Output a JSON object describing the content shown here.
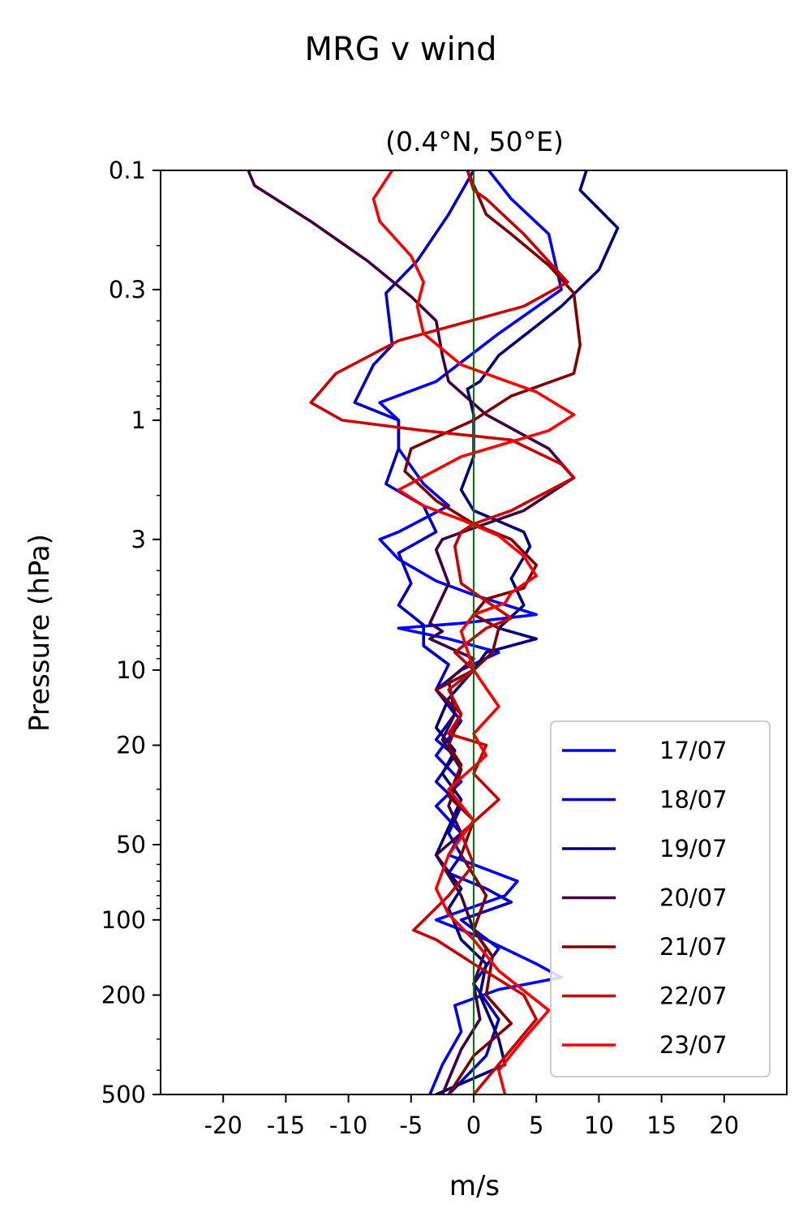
{
  "chart_data": {
    "type": "line",
    "title": "MRG v wind",
    "subtitle": "(0.4°N, 50°E)",
    "xlabel": "m/s",
    "ylabel": "Pressure (hPa)",
    "xlim": [
      -25,
      25
    ],
    "ylim": [
      500,
      0.1
    ],
    "yscale": "log",
    "xticks": [
      -20,
      -15,
      -10,
      -5,
      0,
      5,
      10,
      15,
      20
    ],
    "xtick_labels": [
      "-20",
      "-15",
      "-10",
      "-5",
      "0",
      "5",
      "10",
      "15",
      "20"
    ],
    "yticks": [
      0.1,
      0.3,
      1,
      3,
      10,
      20,
      50,
      100,
      200,
      500
    ],
    "ytick_labels": [
      "0.1",
      "0.3",
      "1",
      "3",
      "10",
      "20",
      "50",
      "100",
      "200",
      "500"
    ],
    "zero_line_color": "#008000",
    "grid": false,
    "legend_position": "lower-right",
    "series": [
      {
        "name": "17/07",
        "color": "#0000ff",
        "points": [
          [
            1.2,
            0.1
          ],
          [
            3,
            0.13
          ],
          [
            6,
            0.18
          ],
          [
            7,
            0.3
          ],
          [
            2,
            0.45
          ],
          [
            -3,
            0.7
          ],
          [
            -7.5,
            0.85
          ],
          [
            -6,
            1
          ],
          [
            -6,
            1.3
          ],
          [
            -4,
            1.8
          ],
          [
            -2,
            2.2
          ],
          [
            -6,
            2.8
          ],
          [
            -7.5,
            3
          ],
          [
            -6,
            3.6
          ],
          [
            -3,
            4.4
          ],
          [
            0,
            5
          ],
          [
            5,
            6
          ],
          [
            -1,
            6.5
          ],
          [
            -6,
            6.8
          ],
          [
            -2,
            7.5
          ],
          [
            2,
            8.5
          ],
          [
            -1,
            10
          ],
          [
            -3,
            12
          ],
          [
            -1,
            16
          ],
          [
            -3,
            22
          ],
          [
            -1,
            28
          ],
          [
            -3,
            35
          ],
          [
            -1,
            45
          ],
          [
            -2,
            55
          ],
          [
            3.5,
            70
          ],
          [
            2.5,
            80
          ],
          [
            -3,
            100
          ],
          [
            1,
            120
          ],
          [
            5,
            150
          ],
          [
            7,
            170
          ],
          [
            2,
            190
          ],
          [
            -1.5,
            220
          ],
          [
            -1,
            280
          ],
          [
            -2.5,
            380
          ],
          [
            -3.5,
            500
          ]
        ]
      },
      {
        "name": "18/07",
        "color": "#0000cc",
        "points": [
          [
            0,
            0.1
          ],
          [
            -2,
            0.15
          ],
          [
            -4.5,
            0.23
          ],
          [
            -7,
            0.31
          ],
          [
            -6.5,
            0.5
          ],
          [
            -8,
            0.6
          ],
          [
            -9.5,
            0.85
          ],
          [
            -6,
            1
          ],
          [
            -6,
            1.3
          ],
          [
            -7,
            1.8
          ],
          [
            -4,
            2.2
          ],
          [
            -3,
            2.8
          ],
          [
            -6,
            3.4
          ],
          [
            -5,
            4.5
          ],
          [
            -6,
            5.5
          ],
          [
            -4,
            6.6
          ],
          [
            -4,
            8
          ],
          [
            -2,
            9.5
          ],
          [
            -3,
            12
          ],
          [
            -1.5,
            15
          ],
          [
            -3,
            19
          ],
          [
            -1.5,
            22
          ],
          [
            -3,
            28
          ],
          [
            -1,
            35
          ],
          [
            -2,
            45
          ],
          [
            -1,
            55
          ],
          [
            -2,
            65
          ],
          [
            1,
            75
          ],
          [
            3,
            85
          ],
          [
            -1,
            100
          ],
          [
            2,
            130
          ],
          [
            0,
            180
          ],
          [
            2,
            250
          ],
          [
            1,
            350
          ],
          [
            -2,
            500
          ]
        ]
      },
      {
        "name": "19/07",
        "color": "#000080",
        "points": [
          [
            9,
            0.1
          ],
          [
            8.5,
            0.12
          ],
          [
            11.5,
            0.17
          ],
          [
            10,
            0.25
          ],
          [
            7,
            0.35
          ],
          [
            5,
            0.42
          ],
          [
            2,
            0.55
          ],
          [
            0.5,
            0.7
          ],
          [
            -0.5,
            0.75
          ],
          [
            0,
            0.95
          ],
          [
            0,
            1.4
          ],
          [
            -1,
            1.9
          ],
          [
            0,
            2.3
          ],
          [
            4,
            2.8
          ],
          [
            4.5,
            3.2
          ],
          [
            3,
            4.3
          ],
          [
            4,
            5.5
          ],
          [
            2,
            6.8
          ],
          [
            5,
            7.5
          ],
          [
            1,
            8.5
          ],
          [
            0,
            10
          ],
          [
            -2,
            13
          ],
          [
            -3,
            17
          ],
          [
            -1.5,
            21
          ],
          [
            -2.5,
            26
          ],
          [
            -1,
            33
          ],
          [
            -3,
            55
          ],
          [
            -1,
            75
          ],
          [
            -2,
            90
          ],
          [
            -1,
            120
          ],
          [
            1,
            150
          ],
          [
            0.5,
            200
          ],
          [
            2,
            300
          ],
          [
            2.5,
            380
          ],
          [
            -3,
            500
          ]
        ]
      },
      {
        "name": "20/07",
        "color": "#400040",
        "points": [
          [
            -18,
            0.1
          ],
          [
            -17.5,
            0.115
          ],
          [
            -13,
            0.16
          ],
          [
            -8.5,
            0.23
          ],
          [
            -5,
            0.32
          ],
          [
            -3,
            0.4
          ],
          [
            -2.5,
            0.55
          ],
          [
            -2,
            0.7
          ],
          [
            1,
            0.95
          ],
          [
            6,
            1.3
          ],
          [
            8,
            1.7
          ],
          [
            4,
            2.3
          ],
          [
            0,
            2.7
          ],
          [
            -2.5,
            3
          ],
          [
            -3,
            3.3
          ],
          [
            -2,
            4.5
          ],
          [
            -3.5,
            6.5
          ],
          [
            -2.5,
            7
          ],
          [
            -3.5,
            7.5
          ],
          [
            0,
            9
          ],
          [
            -2,
            11
          ],
          [
            -1.5,
            15
          ],
          [
            -2.5,
            19
          ],
          [
            -1,
            25
          ],
          [
            -2,
            35
          ],
          [
            -1,
            45
          ],
          [
            -3,
            55
          ],
          [
            -1,
            80
          ],
          [
            0,
            110
          ],
          [
            1,
            130
          ],
          [
            0,
            180
          ],
          [
            0.5,
            250
          ],
          [
            -1,
            330
          ],
          [
            -2.5,
            500
          ]
        ]
      },
      {
        "name": "21/07",
        "color": "#800000",
        "points": [
          [
            -0.5,
            0.1
          ],
          [
            1,
            0.15
          ],
          [
            3,
            0.18
          ],
          [
            6,
            0.24
          ],
          [
            8,
            0.31
          ],
          [
            8.5,
            0.5
          ],
          [
            8,
            0.65
          ],
          [
            3,
            0.8
          ],
          [
            0,
            1
          ],
          [
            -5,
            1.3
          ],
          [
            -5.5,
            1.6
          ],
          [
            -3,
            2.1
          ],
          [
            0,
            2.6
          ],
          [
            3,
            3
          ],
          [
            5,
            3.8
          ],
          [
            4,
            4.7
          ],
          [
            1,
            5.2
          ],
          [
            0,
            6
          ],
          [
            2,
            6.8
          ],
          [
            1.5,
            8.5
          ],
          [
            0,
            10
          ],
          [
            -3,
            12
          ],
          [
            -1,
            15
          ],
          [
            -2,
            20
          ],
          [
            -1,
            24
          ],
          [
            -2,
            32
          ],
          [
            0,
            40
          ],
          [
            -1,
            55
          ],
          [
            1,
            80
          ],
          [
            0,
            110
          ],
          [
            1.5,
            140
          ],
          [
            1,
            200
          ],
          [
            3,
            260
          ],
          [
            0,
            350
          ],
          [
            -2,
            500
          ]
        ]
      },
      {
        "name": "22/07",
        "color": "#cc0000",
        "points": [
          [
            -0.5,
            0.1
          ],
          [
            0,
            0.12
          ],
          [
            1,
            0.13
          ],
          [
            4,
            0.18
          ],
          [
            7.5,
            0.28
          ],
          [
            4,
            0.35
          ],
          [
            -6,
            0.48
          ],
          [
            -11,
            0.65
          ],
          [
            -13,
            0.85
          ],
          [
            -10.5,
            1
          ],
          [
            -4,
            1.1
          ],
          [
            3,
            1.2
          ],
          [
            7,
            1.5
          ],
          [
            8,
            1.7
          ],
          [
            3,
            2.3
          ],
          [
            0,
            2.6
          ],
          [
            -1,
            2.8
          ],
          [
            -1.5,
            3.2
          ],
          [
            -1,
            4.5
          ],
          [
            1,
            5.3
          ],
          [
            3,
            6.2
          ],
          [
            1,
            6.8
          ],
          [
            -1.5,
            8.5
          ],
          [
            0,
            10
          ],
          [
            -2,
            12
          ],
          [
            -1,
            15
          ],
          [
            -2,
            18
          ],
          [
            1,
            20
          ],
          [
            0,
            26
          ],
          [
            2,
            33
          ],
          [
            -1,
            45
          ],
          [
            0,
            60
          ],
          [
            -2,
            80
          ],
          [
            -4.8,
            110
          ],
          [
            -3,
            120
          ],
          [
            0,
            150
          ],
          [
            4,
            200
          ],
          [
            5,
            250
          ],
          [
            3,
            330
          ],
          [
            0,
            500
          ]
        ]
      },
      {
        "name": "23/07",
        "color": "#ff0000",
        "points": [
          [
            -6.5,
            0.1
          ],
          [
            -8,
            0.13
          ],
          [
            -7.5,
            0.16
          ],
          [
            -5,
            0.22
          ],
          [
            -4,
            0.28
          ],
          [
            -4.5,
            0.35
          ],
          [
            -4,
            0.45
          ],
          [
            -1,
            0.6
          ],
          [
            5,
            0.77
          ],
          [
            8,
            0.95
          ],
          [
            6,
            1.1
          ],
          [
            -1,
            1.4
          ],
          [
            -6,
            1.9
          ],
          [
            -4,
            2.2
          ],
          [
            -1,
            2.5
          ],
          [
            2,
            2.9
          ],
          [
            4,
            3.5
          ],
          [
            5,
            4.2
          ],
          [
            3,
            4.9
          ],
          [
            2.5,
            5.4
          ],
          [
            0,
            6
          ],
          [
            -1,
            7
          ],
          [
            0,
            10
          ],
          [
            2,
            14
          ],
          [
            0,
            18
          ],
          [
            1,
            22
          ],
          [
            -2,
            30
          ],
          [
            0,
            40
          ],
          [
            -2,
            55
          ],
          [
            -3,
            75
          ],
          [
            -2,
            95
          ],
          [
            0,
            120
          ],
          [
            2,
            160
          ],
          [
            6,
            230
          ],
          [
            4,
            300
          ],
          [
            2,
            400
          ],
          [
            2.5,
            500
          ]
        ]
      }
    ]
  }
}
